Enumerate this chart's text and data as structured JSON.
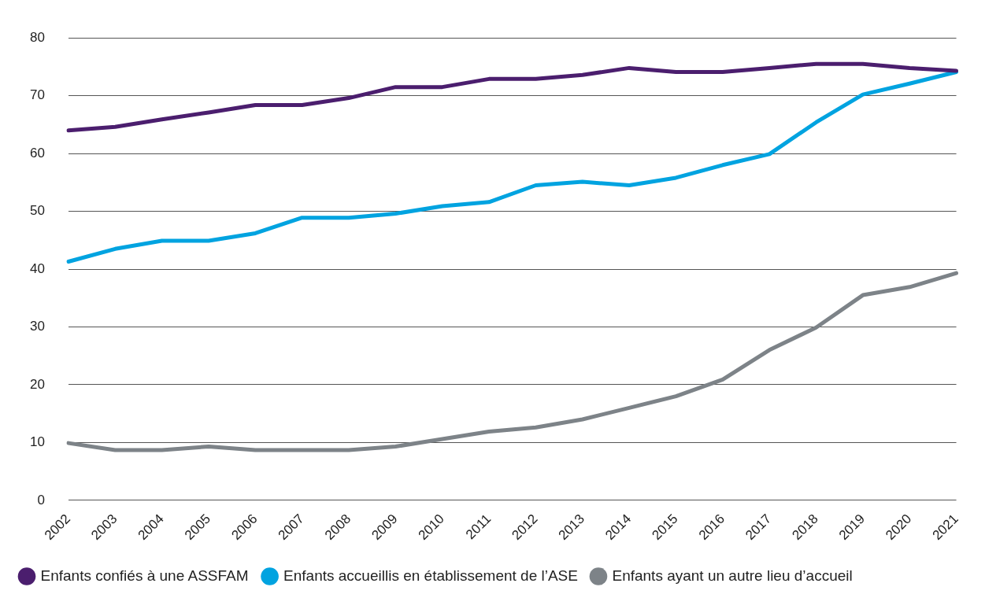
{
  "chart_data": {
    "type": "line",
    "categories": [
      "2002",
      "2003",
      "2004",
      "2005",
      "2006",
      "2007",
      "2008",
      "2009",
      "2010",
      "2011",
      "2012",
      "2013",
      "2014",
      "2015",
      "2016",
      "2017",
      "2018",
      "2019",
      "2020",
      "2021"
    ],
    "series": [
      {
        "name": "Enfants confiés à une ASSFAM",
        "color": "#4b1e6e",
        "values": [
          64.0,
          64.6,
          65.9,
          67.1,
          68.4,
          68.4,
          69.6,
          71.5,
          71.5,
          72.9,
          72.9,
          73.6,
          74.8,
          74.1,
          74.1,
          74.8,
          75.5,
          75.5,
          74.8,
          74.3
        ]
      },
      {
        "name": "Enfants accueillis en établissement de l’ASE",
        "color": "#00a3e0",
        "values": [
          41.3,
          43.5,
          44.9,
          44.9,
          46.2,
          48.9,
          48.9,
          49.6,
          50.9,
          51.6,
          54.5,
          55.1,
          54.5,
          55.8,
          58.0,
          59.9,
          65.4,
          70.2,
          72.1,
          74.1
        ]
      },
      {
        "name": "Enfants ayant un autre lieu d’accueil",
        "color": "#7d8388",
        "values": [
          9.9,
          8.7,
          8.7,
          9.3,
          8.7,
          8.7,
          8.7,
          9.3,
          10.6,
          11.9,
          12.6,
          14.0,
          16.0,
          18.0,
          20.9,
          26.0,
          29.9,
          35.5,
          36.9,
          39.3
        ]
      }
    ],
    "ylim": [
      0,
      80
    ],
    "yticks": [
      0,
      10,
      20,
      30,
      40,
      50,
      60,
      70,
      80
    ],
    "grid": "y",
    "legend": "bottom left",
    "marker": "none",
    "line_style": "solid"
  }
}
